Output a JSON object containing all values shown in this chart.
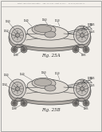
{
  "bg_color": "#f2efea",
  "border_color": "#999999",
  "line_color": "#4a4a4a",
  "text_color": "#2a2a2a",
  "header_color": "#888888",
  "fig_a_label": "Fig. 25A",
  "fig_b_label": "Fig. 25B",
  "vehicle_fill": "#e0dbd4",
  "cockpit_fill": "#c8c2bc",
  "shadow_color": "#b0aaa4",
  "header_text": "Patent Application Publication     Sep. 23, 2010  Sheet 14 of 17     US 2010/0XXXXXX A1"
}
